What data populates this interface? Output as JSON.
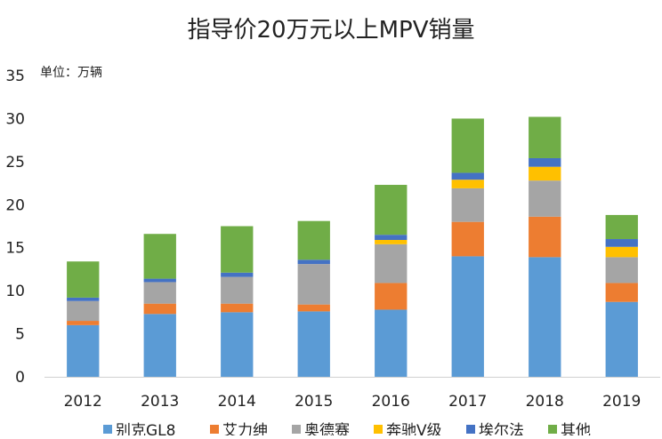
{
  "chart_data": {
    "type": "bar",
    "stacked": true,
    "title": "指导价20万元以上MPV销量",
    "unit_label": "单位：万辆",
    "categories": [
      "2012",
      "2013",
      "2014",
      "2015",
      "2016",
      "2017",
      "2018",
      "2019"
    ],
    "ylim": [
      0,
      35
    ],
    "yticks": [
      "0",
      "5",
      "10",
      "15",
      "20",
      "25",
      "30",
      "35"
    ],
    "grid": false,
    "legend_position": "bottom",
    "series": [
      {
        "name": "别克GL8",
        "color": "#5B9BD5",
        "values": [
          6.0,
          7.3,
          7.5,
          7.6,
          7.8,
          14.0,
          13.9,
          8.7
        ]
      },
      {
        "name": "艾力绅",
        "color": "#ED7D31",
        "values": [
          0.5,
          1.2,
          1.0,
          0.8,
          3.1,
          4.0,
          4.7,
          2.2
        ]
      },
      {
        "name": "奥德赛",
        "color": "#A5A5A5",
        "values": [
          2.3,
          2.5,
          3.1,
          4.7,
          4.5,
          3.9,
          4.2,
          3.0
        ]
      },
      {
        "name": "奔驰V级",
        "color": "#FFC000",
        "values": [
          0.0,
          0.0,
          0.0,
          0.0,
          0.5,
          1.0,
          1.6,
          1.2
        ]
      },
      {
        "name": "埃尔法",
        "color": "#4472C4",
        "values": [
          0.4,
          0.4,
          0.5,
          0.5,
          0.6,
          0.8,
          1.0,
          0.9
        ]
      },
      {
        "name": "其他",
        "color": "#70AD47",
        "values": [
          4.2,
          5.2,
          5.4,
          4.5,
          5.8,
          6.3,
          4.8,
          2.8
        ]
      }
    ]
  }
}
